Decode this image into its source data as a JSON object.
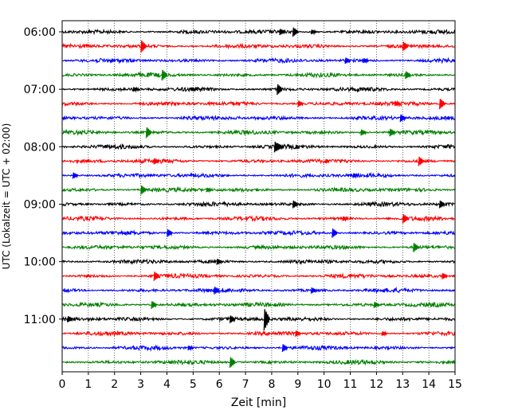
{
  "chart_data": {
    "type": "line",
    "title": "",
    "xlabel": "Zeit  [min]",
    "ylabel": "UTC (Lokalzeit = UTC + 02:00)",
    "xlim": [
      0,
      15
    ],
    "x_ticks": [
      0,
      1,
      2,
      3,
      4,
      5,
      6,
      7,
      8,
      9,
      10,
      11,
      12,
      13,
      14,
      15
    ],
    "grid": "vertical dotted",
    "y_tick_labels": [
      "06:00",
      "07:00",
      "08:00",
      "09:00",
      "10:00",
      "11:00"
    ],
    "trace_colors": [
      "#000000",
      "#ff0000",
      "#0000ff",
      "#008000"
    ],
    "traces": [
      {
        "start": "06:00",
        "events": [
          [
            8.9,
            6
          ],
          [
            8.4,
            4
          ],
          [
            9.6,
            3
          ]
        ]
      },
      {
        "start": "06:15",
        "events": [
          [
            3.1,
            8
          ],
          [
            13.1,
            6
          ]
        ]
      },
      {
        "start": "06:30",
        "events": [
          [
            10.9,
            4
          ],
          [
            11.6,
            3
          ]
        ]
      },
      {
        "start": "06:45",
        "events": [
          [
            3.9,
            7
          ],
          [
            13.2,
            5
          ]
        ]
      },
      {
        "start": "07:00",
        "events": [
          [
            8.3,
            7
          ],
          [
            2.8,
            3
          ]
        ]
      },
      {
        "start": "07:15",
        "events": [
          [
            14.5,
            7
          ],
          [
            9.1,
            4
          ],
          [
            12.8,
            3
          ]
        ]
      },
      {
        "start": "07:30",
        "events": [
          [
            13.0,
            5
          ]
        ]
      },
      {
        "start": "07:45",
        "events": [
          [
            3.3,
            7
          ],
          [
            12.6,
            5
          ],
          [
            11.5,
            4
          ]
        ]
      },
      {
        "start": "08:00",
        "events": [
          [
            8.2,
            7
          ],
          [
            8.3,
            5
          ]
        ]
      },
      {
        "start": "08:15",
        "events": [
          [
            13.7,
            6
          ],
          [
            3.6,
            4
          ]
        ]
      },
      {
        "start": "08:30",
        "events": [
          [
            0.5,
            4
          ],
          [
            11.2,
            3
          ]
        ]
      },
      {
        "start": "08:45",
        "events": [
          [
            3.1,
            6
          ],
          [
            5.6,
            3
          ]
        ]
      },
      {
        "start": "09:00",
        "events": [
          [
            14.5,
            5
          ],
          [
            8.9,
            5
          ]
        ]
      },
      {
        "start": "09:15",
        "events": [
          [
            13.1,
            6
          ],
          [
            10.8,
            3
          ]
        ]
      },
      {
        "start": "09:30",
        "events": [
          [
            10.4,
            6
          ],
          [
            4.1,
            5
          ]
        ]
      },
      {
        "start": "09:45",
        "events": [
          [
            13.5,
            6
          ]
        ]
      },
      {
        "start": "10:00",
        "events": [
          [
            6.0,
            4
          ]
        ]
      },
      {
        "start": "10:15",
        "events": [
          [
            3.6,
            6
          ],
          [
            14.6,
            4
          ]
        ]
      },
      {
        "start": "10:30",
        "events": [
          [
            5.9,
            5
          ],
          [
            9.6,
            4
          ]
        ]
      },
      {
        "start": "10:45",
        "events": [
          [
            3.5,
            5
          ],
          [
            12.0,
            4
          ]
        ]
      },
      {
        "start": "11:00",
        "events": [
          [
            7.8,
            14
          ],
          [
            6.5,
            5
          ],
          [
            0.3,
            4
          ]
        ]
      },
      {
        "start": "11:15",
        "events": [
          [
            9.0,
            4
          ],
          [
            12.3,
            3
          ]
        ]
      },
      {
        "start": "11:30",
        "events": [
          [
            8.5,
            5
          ],
          [
            4.9,
            3
          ]
        ]
      },
      {
        "start": "11:45",
        "events": [
          [
            6.5,
            7
          ]
        ]
      }
    ]
  }
}
